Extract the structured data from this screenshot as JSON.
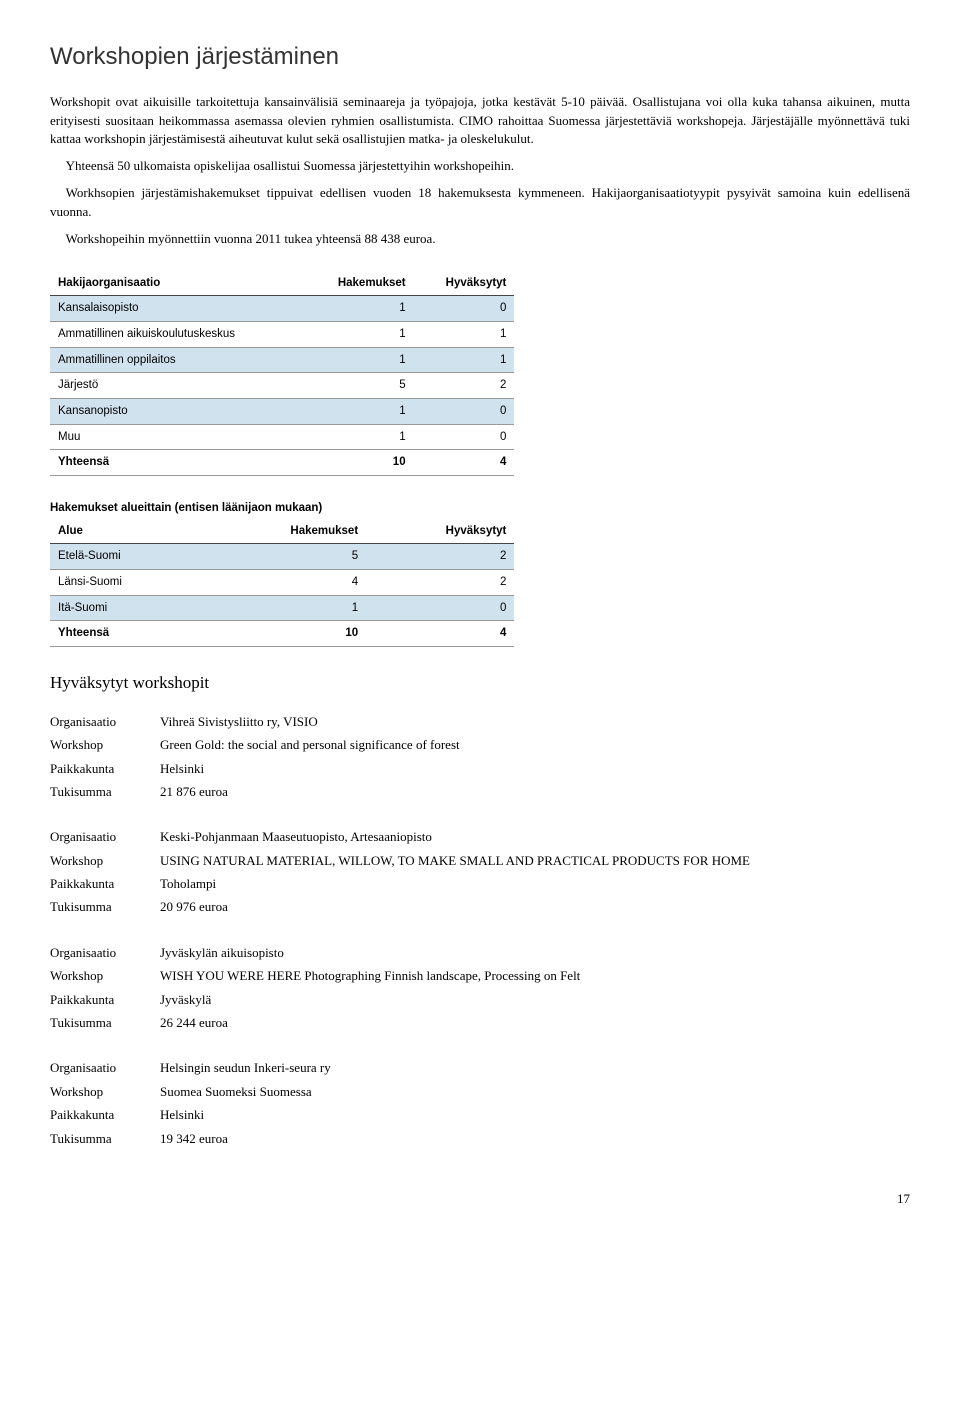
{
  "title": "Workshopien järjestäminen",
  "paragraphs": [
    "Workshopit ovat aikuisille  tarkoitettuja kansainvälisiä seminaareja ja työpajoja, jotka kestävät 5-10 päivää. Osallistujana voi olla kuka tahansa aikuinen, mutta erityisesti suositaan heikommassa asemassa olevien ryhmien osallistumista. CIMO rahoittaa Suomessa järjestettäviä workshopeja. Järjestäjälle myönnettävä tuki kattaa workshopin järjestämisestä aiheutuvat kulut sekä  osallistujien matka- ja oleskelukulut.",
    "Yhteensä 50 ulkomaista opiskelijaa osallistui Suomessa järjestettyihin workshopeihin.",
    "Workhsopien järjestämishakemukset tippuivat edellisen vuoden 18 hakemuksesta kymmeneen.  Hakijaorganisaatiotyypit pysyivät samoina kuin edellisenä vuonna.",
    "Workshopeihin myönnettiin vuonna 2011 tukea yhteensä 88 438 euroa."
  ],
  "table1": {
    "headers": [
      "Hakijaorganisaatio",
      "Hakemukset",
      "Hyväksytyt"
    ],
    "rows": [
      {
        "cells": [
          "Kansalaisopisto",
          "1",
          "0"
        ],
        "striped": true
      },
      {
        "cells": [
          "Ammatillinen aikuiskoulutuskeskus",
          "1",
          "1"
        ],
        "striped": false
      },
      {
        "cells": [
          "Ammatillinen oppilaitos",
          "1",
          "1"
        ],
        "striped": true
      },
      {
        "cells": [
          "Järjestö",
          "5",
          "2"
        ],
        "striped": false
      },
      {
        "cells": [
          "Kansanopisto",
          "1",
          "0"
        ],
        "striped": true
      },
      {
        "cells": [
          "Muu",
          "1",
          "0"
        ],
        "striped": false
      }
    ],
    "total": [
      "Yhteensä",
      "10",
      "4"
    ]
  },
  "table2": {
    "caption": "Hakemukset alueittain (entisen läänijaon mukaan)",
    "headers": [
      "Alue",
      "Hakemukset",
      "Hyväksytyt"
    ],
    "rows": [
      {
        "cells": [
          "Etelä-Suomi",
          "5",
          "2"
        ],
        "striped": true
      },
      {
        "cells": [
          "Länsi-Suomi",
          "4",
          "2"
        ],
        "striped": false
      },
      {
        "cells": [
          "Itä-Suomi",
          "1",
          "0"
        ],
        "striped": true
      }
    ],
    "total": [
      "Yhteensä",
      "10",
      "4"
    ]
  },
  "approved_heading": "Hyväksytyt workshopit",
  "labels": {
    "org": "Organisaatio",
    "workshop": "Workshop",
    "place": "Paikkakunta",
    "sum": "Tukisumma"
  },
  "workshops": [
    {
      "org": "Vihreä Sivistysliitto ry, VISIO",
      "workshop": "Green Gold: the social and personal significance of forest",
      "place": "Helsinki",
      "sum": "21 876 euroa"
    },
    {
      "org": "Keski-Pohjanmaan Maaseutuopisto, Artesaaniopisto",
      "workshop": "USING NATURAL MATERIAL, WILLOW, TO MAKE SMALL AND PRACTICAL PRODUCTS FOR HOME",
      "place": "Toholampi",
      "sum": "20 976 euroa"
    },
    {
      "org": "Jyväskylän aikuisopisto",
      "workshop": "WISH YOU WERE HERE Photographing Finnish landscape, Processing on Felt",
      "place": "Jyväskylä",
      "sum": "26 244 euroa"
    },
    {
      "org": "Helsingin seudun Inkeri-seura ry",
      "workshop": "Suomea Suomeksi Suomessa",
      "place": "Helsinki",
      "sum": "19 342 euroa"
    }
  ],
  "page_number": "17",
  "colors": {
    "stripe": "#d0e2ee",
    "text": "#000000",
    "bg": "#ffffff"
  }
}
